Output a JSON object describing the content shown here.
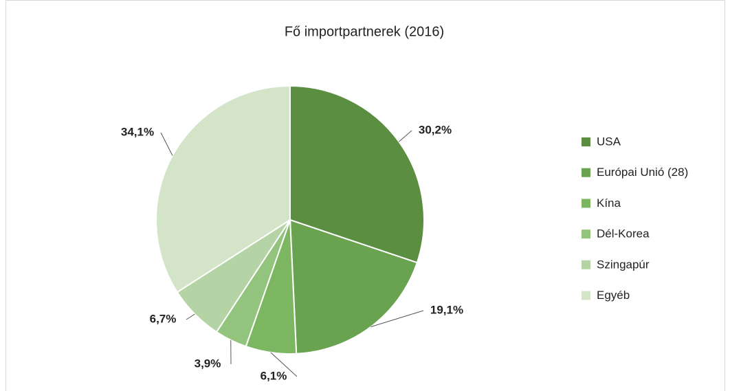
{
  "chart_data": {
    "type": "pie",
    "title": "Fő importpartnerek (2016)",
    "categories": [
      "USA",
      "Európai Unió (28)",
      "Kína",
      "Dél-Korea",
      "Szingapúr",
      "Egyéb"
    ],
    "values": [
      30.2,
      19.1,
      6.1,
      3.9,
      6.7,
      34.1
    ],
    "value_labels": [
      "30,2%",
      "19,1%",
      "6,1%",
      "3,9%",
      "6,7%",
      "34,1%"
    ],
    "colors": [
      "#5b8e40",
      "#6aa350",
      "#7cb661",
      "#93c47d",
      "#b5d4a6",
      "#d3e4c9"
    ],
    "legend": "right"
  }
}
